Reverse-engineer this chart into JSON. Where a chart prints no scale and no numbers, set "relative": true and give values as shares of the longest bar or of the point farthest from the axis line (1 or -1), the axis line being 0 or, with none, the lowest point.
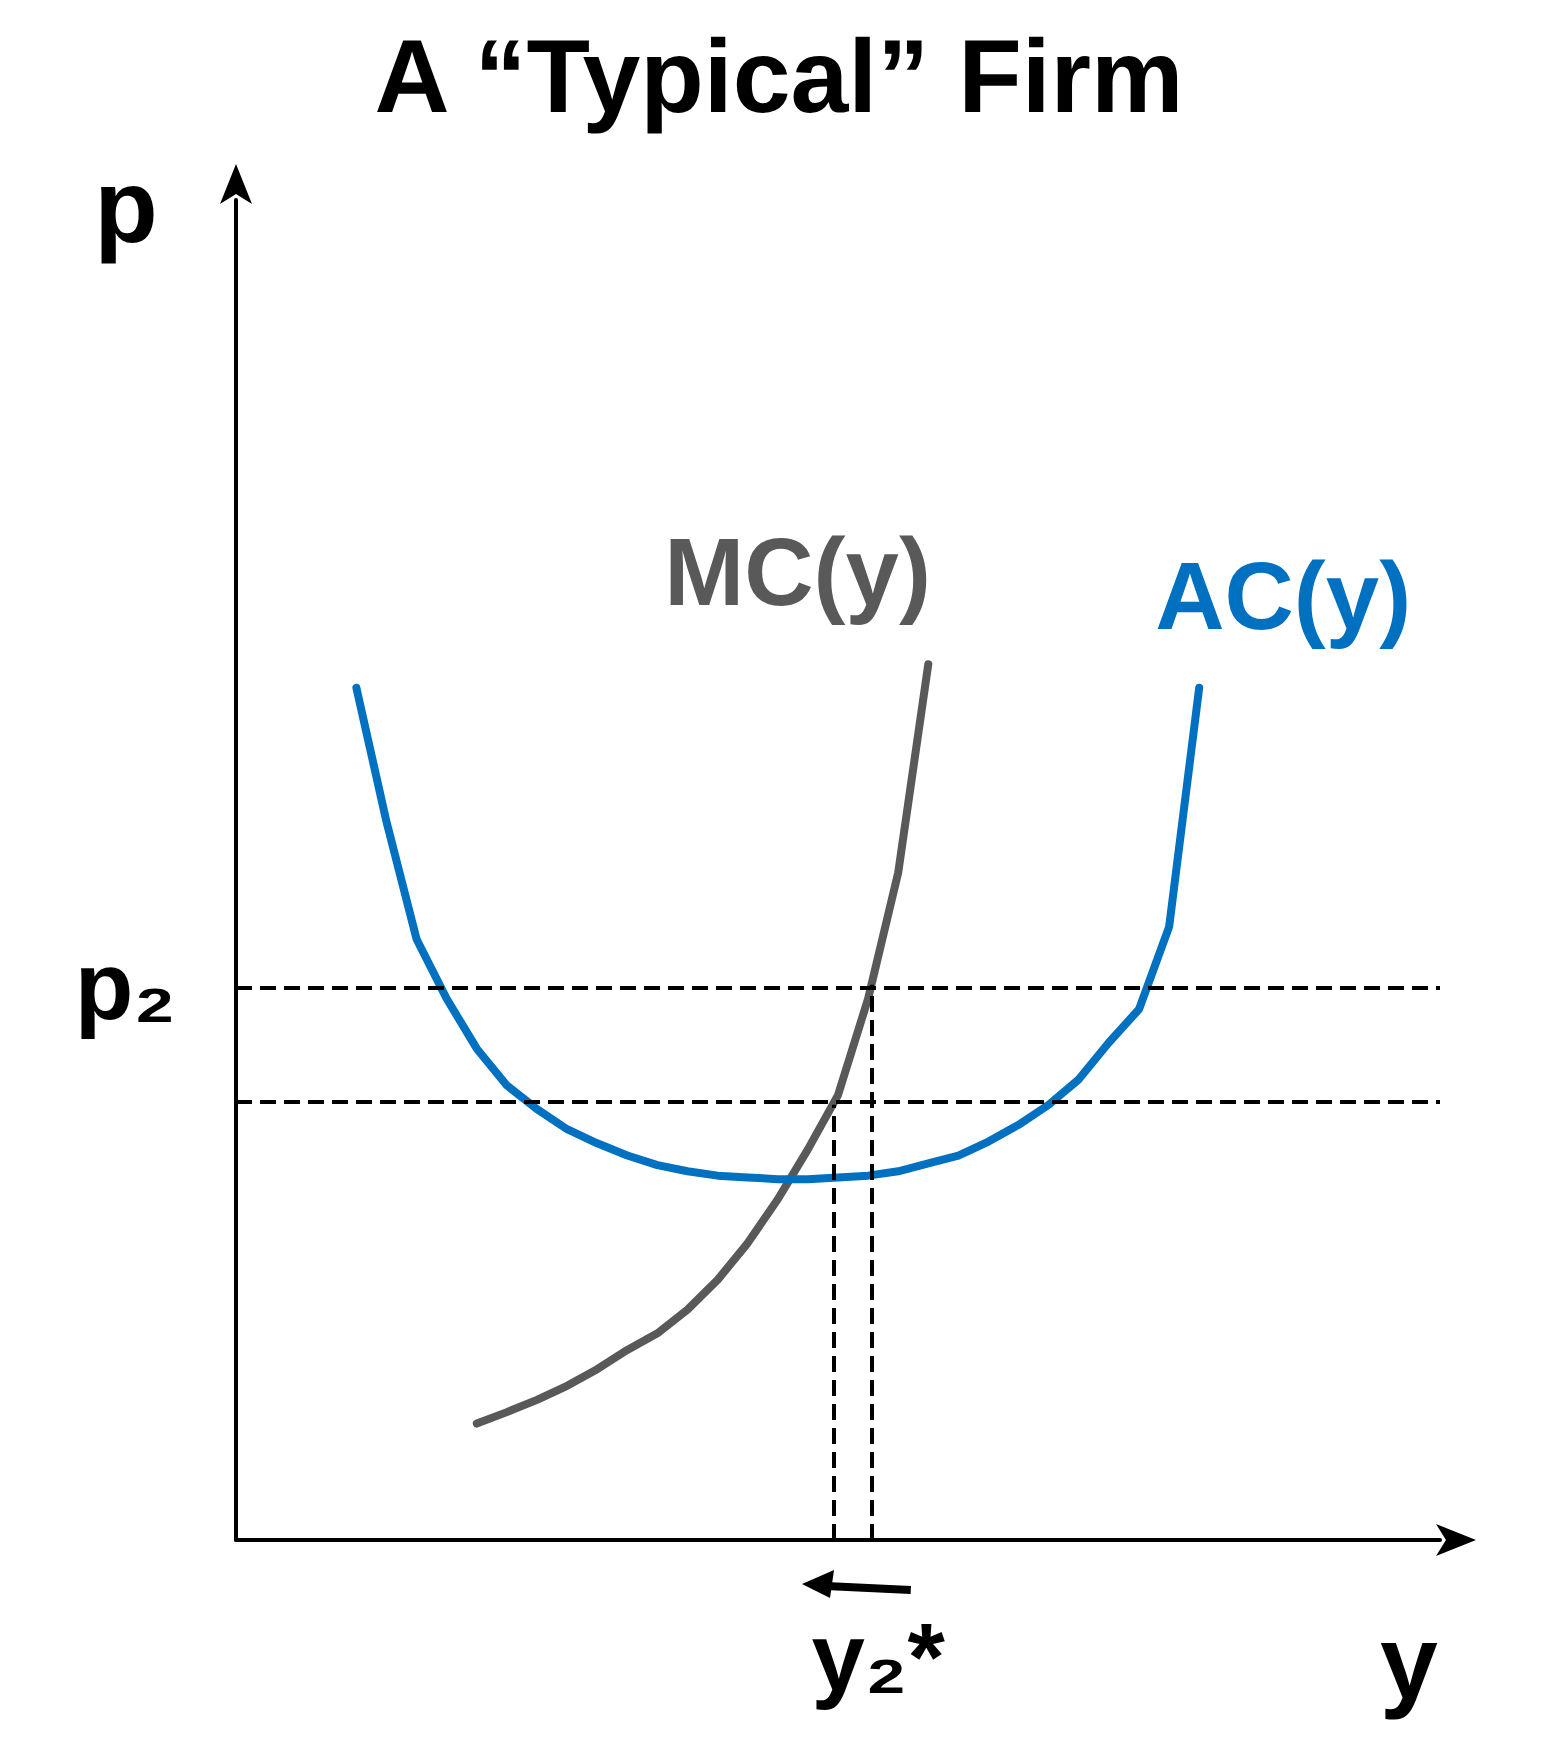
{
  "chart_data": {
    "type": "line",
    "title": "A “Typical” Firm",
    "xlabel": "y",
    "ylabel": "p",
    "relative": true,
    "tick_labels": false,
    "grid": false,
    "legend": false,
    "marker": "none",
    "line_style": "solid",
    "categories": [
      null,
      null,
      null,
      null,
      null,
      null,
      null,
      null,
      null,
      null,
      null,
      null,
      null,
      null,
      null,
      null,
      null,
      null,
      null,
      null,
      null,
      null,
      null,
      null,
      null,
      null,
      null,
      null,
      null,
      null,
      null,
      null,
      null,
      null,
      null,
      null,
      null,
      null,
      null,
      null,
      null
    ],
    "series": [
      {
        "name": "MC(y)",
        "color": "#595959",
        "values": [
          null,
          null,
          null,
          null,
          null,
          null,
          null,
          null,
          0.133,
          0.146,
          0.16,
          0.176,
          0.195,
          0.217,
          0.236,
          0.263,
          0.297,
          0.339,
          0.389,
          0.446,
          0.508,
          0.618,
          0.762,
          1,
          null,
          null,
          null,
          null,
          null,
          null,
          null,
          null,
          null,
          null,
          null,
          null,
          null,
          null,
          null,
          null,
          null
        ]
      },
      {
        "name": "AC(y)",
        "color": "#0070c0",
        "values": [
          null,
          null,
          null,
          null,
          0.973,
          0.82,
          0.686,
          0.618,
          0.561,
          0.519,
          0.492,
          0.469,
          0.453,
          0.439,
          0.428,
          0.421,
          0.416,
          0.414,
          0.412,
          0.412,
          0.414,
          0.416,
          0.421,
          0.43,
          0.439,
          0.455,
          0.474,
          0.497,
          0.526,
          0.568,
          0.606,
          0.7,
          0.973,
          null,
          null,
          null,
          null,
          null,
          null,
          null,
          null
        ]
      }
    ],
    "ref_lines": [
      {
        "axis": "y",
        "value": 0.634,
        "label": "p₂",
        "color": "#000000",
        "line_style": "dashed"
      },
      {
        "axis": "y",
        "value": 0.497,
        "color": "#000000",
        "line_style": "dashed"
      }
    ],
    "annotations": [
      "y₂*"
    ]
  }
}
